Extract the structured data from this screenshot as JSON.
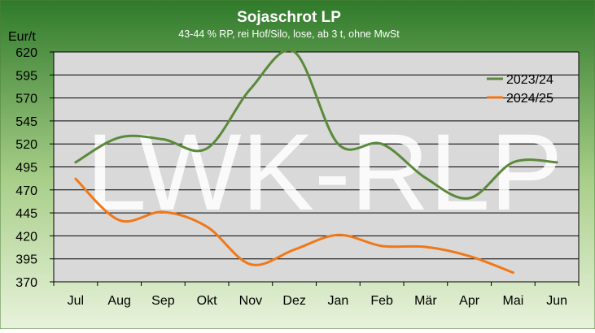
{
  "chart_data": {
    "type": "line",
    "title": "Sojaschrot LP",
    "subtitle": "43-44 % RP, rei Hof/Silo, lose, ab 3 t, ohne MwSt",
    "ylabel": "Eur/t",
    "watermark": "LWK-RLP",
    "categories": [
      "Jul",
      "Aug",
      "Sep",
      "Okt",
      "Nov",
      "Dez",
      "Jan",
      "Feb",
      "Mär",
      "Apr",
      "Mai",
      "Jun"
    ],
    "ylim": [
      370,
      620
    ],
    "yticks": [
      370,
      395,
      420,
      445,
      470,
      495,
      520,
      545,
      570,
      595,
      620
    ],
    "grid": true,
    "legend_position": "top-right",
    "series": [
      {
        "name": "2023/24",
        "color": "#5a8a3a",
        "values": [
          500,
          527,
          525,
          515,
          580,
          620,
          520,
          520,
          483,
          461,
          500,
          500
        ]
      },
      {
        "name": "2024/25",
        "color": "#f07818",
        "values": [
          482,
          437,
          446,
          430,
          389,
          405,
          421,
          409,
          408,
          398,
          380,
          null
        ]
      }
    ],
    "colors": {
      "frame_top": "#2f7a2a",
      "frame_bottom": "#e8f2dc",
      "plot_background": "#d9d9d9",
      "watermark": "#ffffff",
      "title_text": "#ffffff"
    }
  }
}
